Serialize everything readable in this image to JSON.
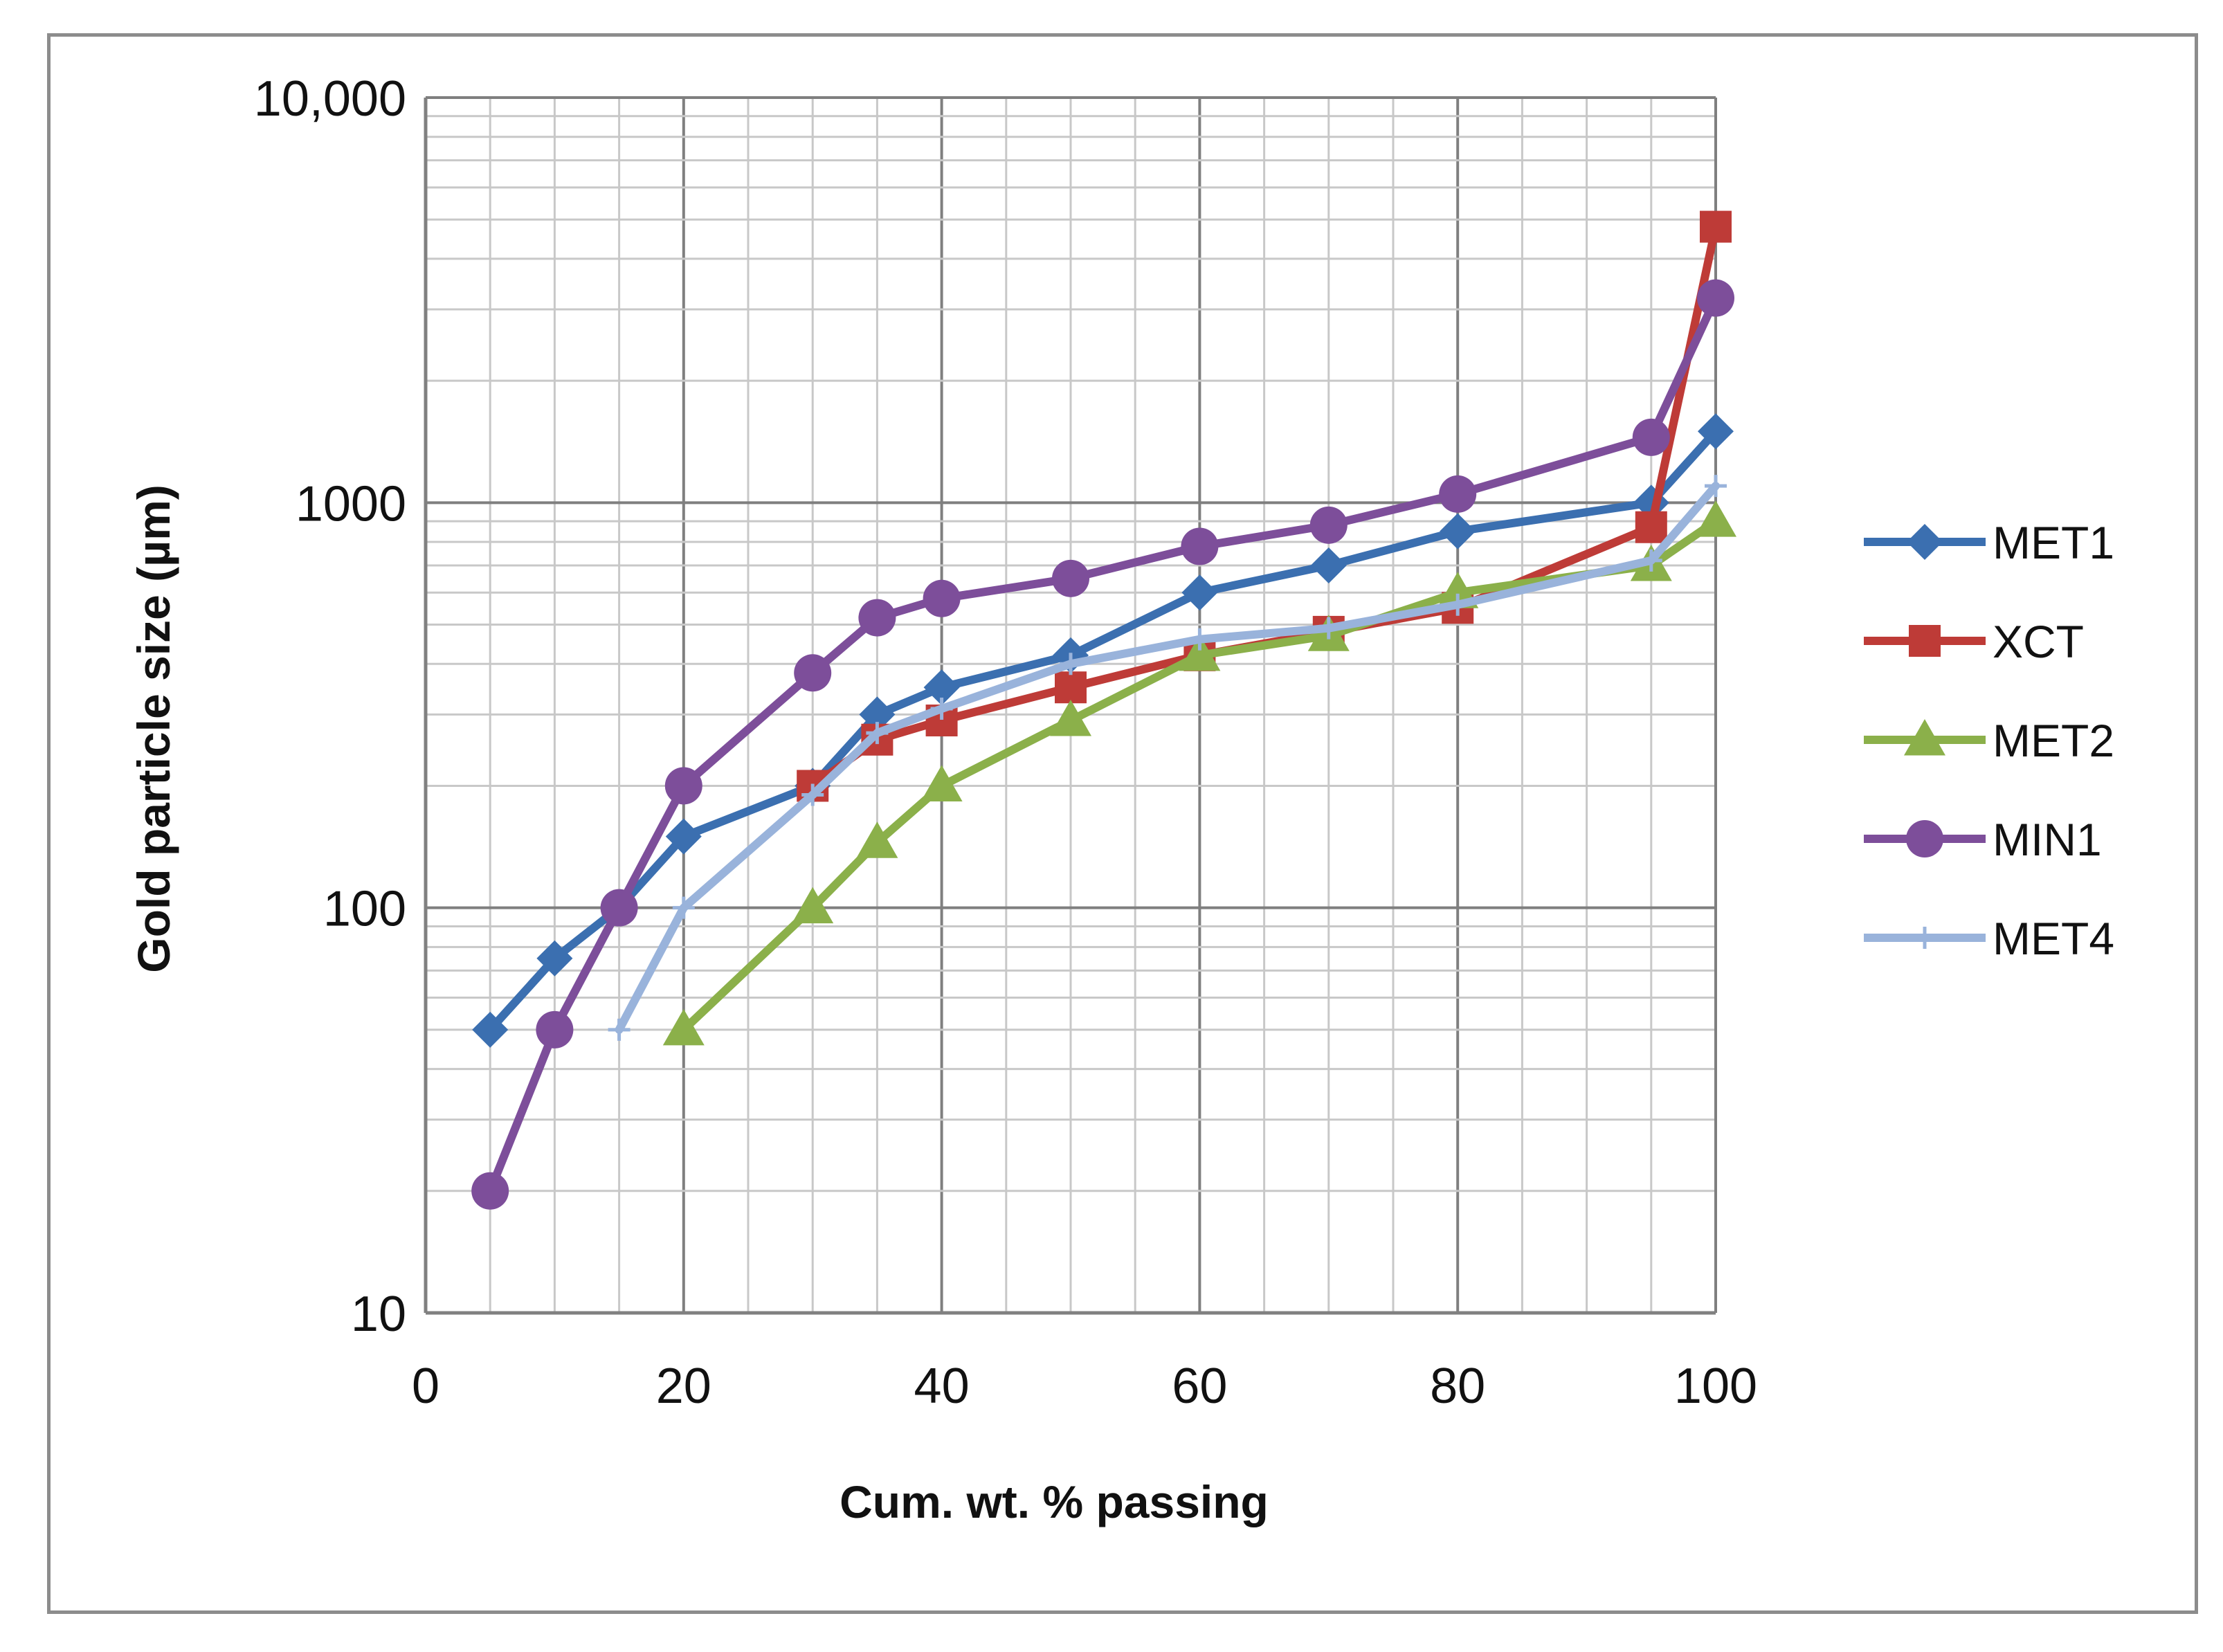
{
  "chart_data": {
    "type": "line",
    "title": "",
    "xlabel": "Cum. wt. % passing",
    "ylabel": "Gold particle size (µm)",
    "x_scale": "linear",
    "y_scale": "log",
    "xlim": [
      0,
      100
    ],
    "ylim": [
      10,
      10000
    ],
    "x_ticks": [
      0,
      20,
      40,
      60,
      80,
      100
    ],
    "x_tick_labels": [
      "0",
      "20",
      "40",
      "60",
      "80",
      "100"
    ],
    "y_ticks": [
      10,
      100,
      1000,
      10000
    ],
    "y_tick_labels": [
      "10",
      "100",
      "1000",
      "10,000"
    ],
    "grid": true,
    "legend_position": "right",
    "series": [
      {
        "name": "MET1",
        "color": "#3B6FB0",
        "marker": "diamond",
        "x": [
          5,
          10,
          15,
          20,
          30,
          35,
          40,
          50,
          60,
          70,
          80,
          95,
          100
        ],
        "y": [
          50,
          75,
          100,
          150,
          200,
          300,
          350,
          420,
          600,
          700,
          850,
          1000,
          1500
        ]
      },
      {
        "name": "XCT",
        "color": "#BE3B37",
        "marker": "square",
        "x": [
          30,
          35,
          40,
          50,
          60,
          70,
          80,
          95,
          100
        ],
        "y": [
          200,
          260,
          290,
          350,
          420,
          480,
          550,
          870,
          4800
        ]
      },
      {
        "name": "MET2",
        "color": "#8BB04A",
        "marker": "triangle",
        "x": [
          20,
          30,
          35,
          40,
          50,
          60,
          70,
          80,
          95,
          100
        ],
        "y": [
          50,
          100,
          145,
          200,
          290,
          420,
          470,
          600,
          700,
          900
        ]
      },
      {
        "name": "MIN1",
        "color": "#7D4E9A",
        "marker": "circle",
        "x": [
          5,
          10,
          15,
          20,
          30,
          35,
          40,
          50,
          60,
          70,
          80,
          95,
          100
        ],
        "y": [
          20,
          50,
          100,
          200,
          380,
          520,
          580,
          650,
          780,
          880,
          1050,
          1450,
          3200
        ]
      },
      {
        "name": "MET4",
        "color": "#99B3DB",
        "marker": "plus",
        "x": [
          15,
          20,
          30,
          35,
          40,
          50,
          60,
          70,
          80,
          95,
          100
        ],
        "y": [
          50,
          100,
          190,
          270,
          310,
          400,
          460,
          490,
          560,
          720,
          1100
        ]
      }
    ]
  }
}
